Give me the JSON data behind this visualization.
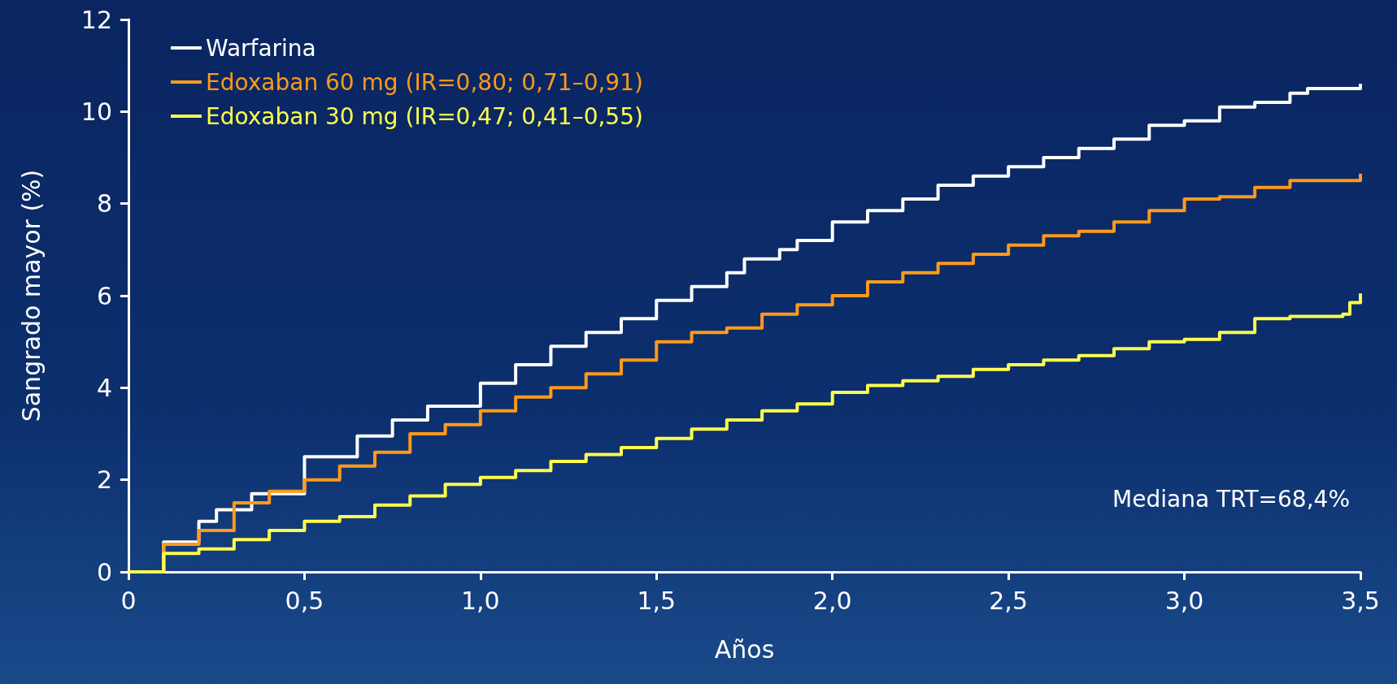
{
  "chart_data": {
    "type": "step",
    "xlabel": "Años",
    "ylabel": "Sangrado mayor (%)",
    "xlim": [
      0,
      3.5
    ],
    "ylim": [
      0,
      12
    ],
    "xticks": [
      0,
      {
        "value": 0.5,
        "label": "0,5"
      },
      {
        "value": 1,
        "label": "1,0"
      },
      {
        "value": 1.5,
        "label": "1,5"
      },
      {
        "value": 2,
        "label": "2,0"
      },
      {
        "value": 2.5,
        "label": "2,5"
      },
      {
        "value": 3,
        "label": "3,0"
      },
      {
        "value": 3.5,
        "label": "3,5"
      }
    ],
    "yticks": [
      0,
      2,
      4,
      6,
      8,
      10,
      12
    ],
    "grid": false,
    "legend": "top left",
    "marker": "none",
    "line_style": "solid",
    "annotations": [
      "Mediana TRT=68,4%"
    ],
    "series": [
      {
        "name": "Warfarina",
        "color": "#ffffff",
        "x": [
          0,
          0.1,
          0.2,
          0.25,
          0.35,
          0.5,
          0.65,
          0.75,
          0.85,
          1.0,
          1.1,
          1.2,
          1.3,
          1.4,
          1.5,
          1.6,
          1.7,
          1.75,
          1.85,
          1.9,
          2.0,
          2.1,
          2.2,
          2.3,
          2.4,
          2.5,
          2.6,
          2.7,
          2.8,
          2.9,
          3.0,
          3.1,
          3.2,
          3.3,
          3.35,
          3.5
        ],
        "values": [
          0,
          0.65,
          1.1,
          1.35,
          1.7,
          2.5,
          2.95,
          3.3,
          3.6,
          4.1,
          4.5,
          4.9,
          5.2,
          5.5,
          5.9,
          6.2,
          6.5,
          6.8,
          7.0,
          7.2,
          7.6,
          7.85,
          8.1,
          8.4,
          8.6,
          8.8,
          9.0,
          9.2,
          9.4,
          9.7,
          9.8,
          10.1,
          10.2,
          10.4,
          10.5,
          10.6
        ]
      },
      {
        "name": "Edoxaban 60 mg (IR=0,80; 0,71–0,91)",
        "color": "#ff9a1a",
        "x": [
          0,
          0.1,
          0.2,
          0.3,
          0.4,
          0.5,
          0.6,
          0.7,
          0.8,
          0.9,
          1.0,
          1.1,
          1.2,
          1.3,
          1.4,
          1.5,
          1.6,
          1.7,
          1.8,
          1.9,
          2.0,
          2.1,
          2.2,
          2.3,
          2.4,
          2.5,
          2.6,
          2.7,
          2.8,
          2.9,
          3.0,
          3.1,
          3.2,
          3.3,
          3.5
        ],
        "values": [
          0,
          0.6,
          0.9,
          1.5,
          1.75,
          2.0,
          2.3,
          2.6,
          3.0,
          3.2,
          3.5,
          3.8,
          4.0,
          4.3,
          4.6,
          5.0,
          5.2,
          5.3,
          5.6,
          5.8,
          6.0,
          6.3,
          6.5,
          6.7,
          6.9,
          7.1,
          7.3,
          7.4,
          7.6,
          7.85,
          8.1,
          8.15,
          8.35,
          8.5,
          8.65
        ]
      },
      {
        "name": "Edoxaban 30 mg (IR=0,47; 0,41–0,55)",
        "color": "#ffff4d",
        "x": [
          0,
          0.1,
          0.2,
          0.3,
          0.4,
          0.5,
          0.6,
          0.7,
          0.8,
          0.9,
          1.0,
          1.1,
          1.2,
          1.3,
          1.4,
          1.5,
          1.6,
          1.7,
          1.8,
          1.9,
          2.0,
          2.1,
          2.2,
          2.3,
          2.4,
          2.5,
          2.6,
          2.7,
          2.8,
          2.9,
          3.0,
          3.1,
          3.2,
          3.3,
          3.45,
          3.47,
          3.5
        ],
        "values": [
          0,
          0.4,
          0.5,
          0.7,
          0.9,
          1.1,
          1.2,
          1.45,
          1.65,
          1.9,
          2.05,
          2.2,
          2.4,
          2.55,
          2.7,
          2.9,
          3.1,
          3.3,
          3.5,
          3.65,
          3.9,
          4.05,
          4.15,
          4.25,
          4.4,
          4.5,
          4.6,
          4.7,
          4.85,
          5.0,
          5.05,
          5.2,
          5.5,
          5.55,
          5.6,
          5.85,
          6.05
        ]
      }
    ]
  }
}
